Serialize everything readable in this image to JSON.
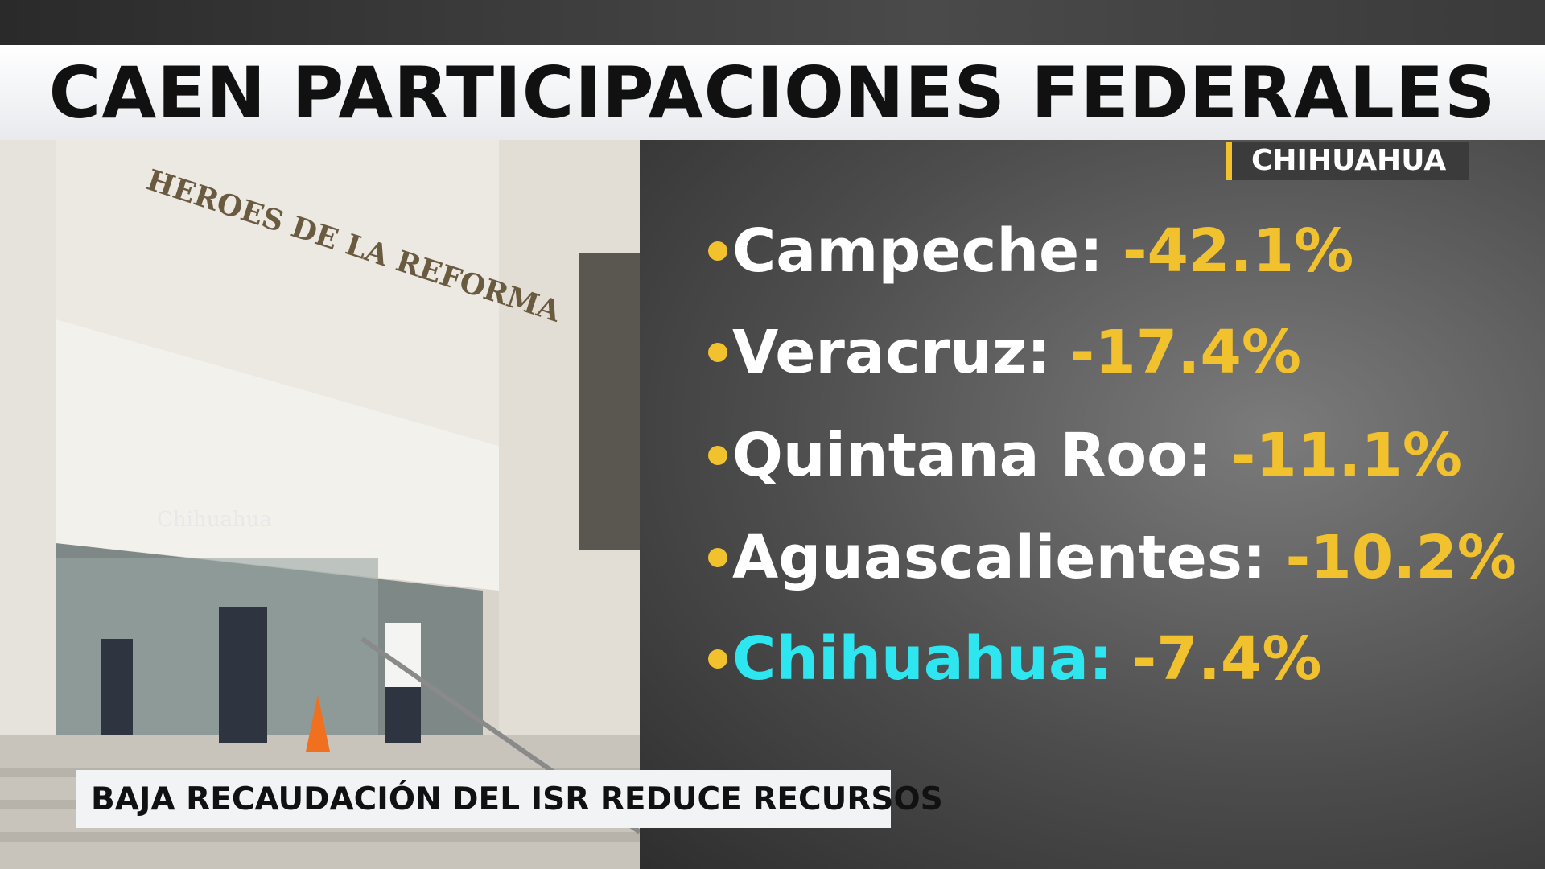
{
  "header": {
    "title": "CAEN PARTICIPACIONES FEDERALES",
    "location": "CHIHUAHUA"
  },
  "list": {
    "items": [
      {
        "label": "Campeche:",
        "value": "-42.1%"
      },
      {
        "label": "Veracruz:",
        "value": "-17.4%"
      },
      {
        "label": "Quintana Roo:",
        "value": "-11.1%"
      },
      {
        "label": "Aguascalientes:",
        "value": "-10.2%"
      },
      {
        "label": "Chihuahua:",
        "value": "-7.4%"
      }
    ]
  },
  "photo": {
    "sign": "HEROES DE LA REFORMA",
    "logo": "Chihuahua"
  },
  "lower_third": {
    "caption": "BAJA RECAUDACIÓN DEL ISR REDUCE RECURSOS"
  }
}
